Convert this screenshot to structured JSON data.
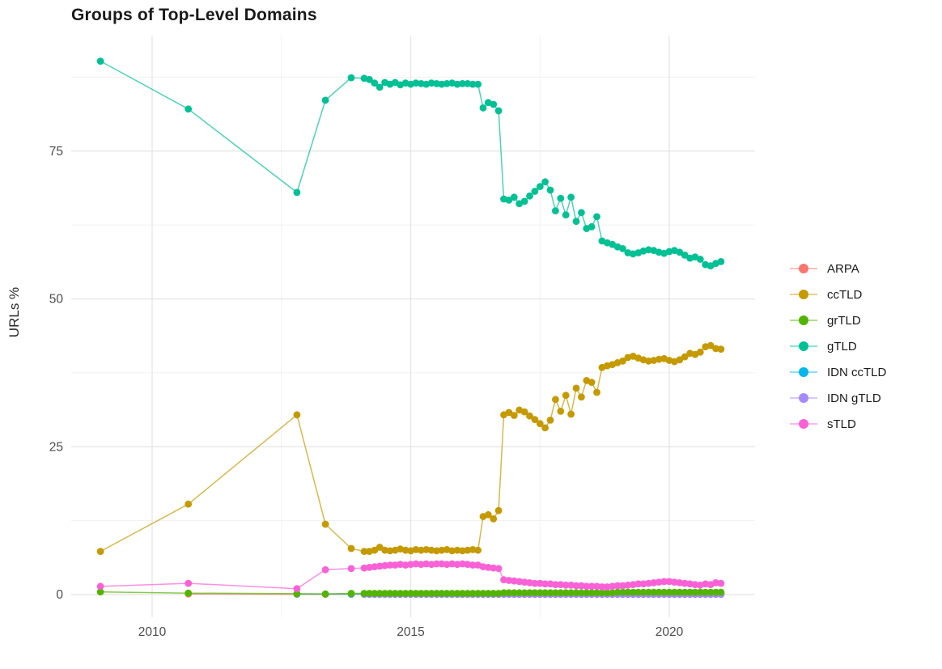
{
  "page": {
    "background": "#ffffff"
  },
  "colors": {
    "grid_major": "#e4e4e4",
    "grid_minor": "#f1f1f1",
    "axis_text": "#4d4d4d",
    "title_text": "#1a1a1a"
  },
  "chart_data": {
    "type": "line",
    "title": "Groups of Top-Level Domains",
    "xlabel": "",
    "ylabel": "URLs %",
    "legend_position": "right",
    "grid": true,
    "xlim": [
      2008.4,
      2021.7
    ],
    "ylim": [
      -3.8,
      94.4
    ],
    "x_ticks": [
      {
        "value": 2010,
        "label": "2010"
      },
      {
        "value": 2015,
        "label": "2015"
      },
      {
        "value": 2020,
        "label": "2020"
      }
    ],
    "x_minor": [
      2012.5,
      2017.5
    ],
    "y_ticks": [
      {
        "value": 0,
        "label": "0"
      },
      {
        "value": 25,
        "label": "25"
      },
      {
        "value": 50,
        "label": "50"
      },
      {
        "value": 75,
        "label": "75"
      }
    ],
    "y_minor": [
      12.5,
      37.5,
      62.5,
      87.5
    ],
    "draw_order": [
      "ARPA",
      "IDN ccTLD",
      "IDN gTLD",
      "ccTLD",
      "gTLD",
      "grTLD",
      "sTLD"
    ],
    "x": [
      2009.0,
      2010.7,
      2012.8,
      2013.35,
      2013.85,
      2014.1,
      2014.2,
      2014.3,
      2014.4,
      2014.5,
      2014.6,
      2014.7,
      2014.8,
      2014.9,
      2015.0,
      2015.1,
      2015.2,
      2015.3,
      2015.4,
      2015.5,
      2015.6,
      2015.7,
      2015.8,
      2015.9,
      2016.0,
      2016.1,
      2016.2,
      2016.3,
      2016.4,
      2016.5,
      2016.6,
      2016.7,
      2016.8,
      2016.9,
      2017.0,
      2017.1,
      2017.2,
      2017.3,
      2017.4,
      2017.5,
      2017.6,
      2017.7,
      2017.8,
      2017.9,
      2018.0,
      2018.1,
      2018.2,
      2018.3,
      2018.4,
      2018.5,
      2018.6,
      2018.7,
      2018.8,
      2018.9,
      2019.0,
      2019.1,
      2019.2,
      2019.3,
      2019.4,
      2019.5,
      2019.6,
      2019.7,
      2019.8,
      2019.9,
      2020.0,
      2020.1,
      2020.2,
      2020.3,
      2020.4,
      2020.5,
      2020.6,
      2020.7,
      2020.8,
      2020.9,
      2021.0
    ],
    "series": [
      {
        "name": "ARPA",
        "color": "#F8766D",
        "values": [
          null,
          0.1,
          0.05,
          0.05,
          0.05,
          0.05,
          0.05,
          0.05,
          0.05,
          0.05,
          0.05,
          0.05,
          0.05,
          0.05,
          0.05,
          0.05,
          0.05,
          0.05,
          0.05,
          0.05,
          0.05,
          0.05,
          0.05,
          0.05,
          0.05,
          0.05,
          0.05,
          0.05,
          0.05,
          0.05,
          0.05,
          0.05,
          0.05,
          0.05,
          0.05,
          0.05,
          0.05,
          0.05,
          0.05,
          0.05,
          0.05,
          0.05,
          0.05,
          0.05,
          0.05,
          0.05,
          0.05,
          0.05,
          0.05,
          0.05,
          0.05,
          0.05,
          0.05,
          0.05,
          0.05,
          0.05,
          0.05,
          0.05,
          0.05,
          0.05,
          0.05,
          0.05,
          0.05,
          0.05,
          0.05,
          0.05,
          0.05,
          0.05,
          0.05,
          0.05,
          0.05,
          0.05,
          0.05,
          0.05,
          0.05
        ]
      },
      {
        "name": "ccTLD",
        "color": "#C49A00",
        "values": [
          7.3,
          15.3,
          30.4,
          11.9,
          7.8,
          7.3,
          7.3,
          7.5,
          8.0,
          7.5,
          7.4,
          7.5,
          7.7,
          7.5,
          7.4,
          7.6,
          7.5,
          7.6,
          7.5,
          7.4,
          7.5,
          7.6,
          7.4,
          7.5,
          7.4,
          7.5,
          7.6,
          7.5,
          13.2,
          13.5,
          12.8,
          14.2,
          30.4,
          30.8,
          30.3,
          31.2,
          30.9,
          30.2,
          29.6,
          28.9,
          28.2,
          29.5,
          33.0,
          31.0,
          33.7,
          30.5,
          34.9,
          33.4,
          36.2,
          35.9,
          34.2,
          38.4,
          38.7,
          38.9,
          39.2,
          39.5,
          40.1,
          40.3,
          40.0,
          39.7,
          39.5,
          39.6,
          39.8,
          39.9,
          39.6,
          39.4,
          39.7,
          40.2,
          40.8,
          40.6,
          41.0,
          41.9,
          42.1,
          41.6,
          41.5
        ]
      },
      {
        "name": "grTLD",
        "color": "#53B400",
        "values": [
          0.45,
          0.25,
          0.15,
          0.1,
          0.2,
          0.2,
          0.2,
          0.2,
          0.2,
          0.2,
          0.2,
          0.2,
          0.2,
          0.2,
          0.2,
          0.2,
          0.2,
          0.2,
          0.2,
          0.2,
          0.2,
          0.2,
          0.2,
          0.2,
          0.2,
          0.2,
          0.2,
          0.2,
          0.2,
          0.2,
          0.2,
          0.2,
          0.3,
          0.3,
          0.3,
          0.3,
          0.3,
          0.3,
          0.3,
          0.3,
          0.3,
          0.3,
          0.3,
          0.3,
          0.3,
          0.3,
          0.3,
          0.3,
          0.3,
          0.3,
          0.3,
          0.3,
          0.3,
          0.3,
          0.4,
          0.4,
          0.4,
          0.4,
          0.4,
          0.4,
          0.4,
          0.4,
          0.4,
          0.4,
          0.4,
          0.4,
          0.4,
          0.4,
          0.4,
          0.4,
          0.4,
          0.4,
          0.4,
          0.4,
          0.4
        ]
      },
      {
        "name": "gTLD",
        "color": "#00C094",
        "values": [
          90.2,
          82.1,
          68.0,
          83.6,
          87.4,
          87.3,
          87.1,
          86.5,
          85.8,
          86.6,
          86.3,
          86.6,
          86.2,
          86.5,
          86.3,
          86.5,
          86.4,
          86.3,
          86.5,
          86.4,
          86.3,
          86.4,
          86.5,
          86.3,
          86.4,
          86.4,
          86.3,
          86.3,
          82.3,
          83.2,
          82.9,
          81.8,
          66.9,
          66.7,
          67.2,
          66.1,
          66.5,
          67.4,
          68.2,
          69.0,
          69.8,
          68.4,
          64.9,
          67.0,
          64.2,
          67.2,
          63.1,
          64.6,
          61.9,
          62.2,
          63.9,
          59.8,
          59.5,
          59.2,
          58.8,
          58.5,
          57.8,
          57.6,
          57.8,
          58.1,
          58.3,
          58.2,
          57.9,
          57.7,
          58.0,
          58.2,
          57.9,
          57.4,
          56.9,
          57.1,
          56.7,
          55.8,
          55.6,
          56.0,
          56.3
        ]
      },
      {
        "name": "IDN ccTLD",
        "color": "#00B6EB",
        "values": [
          null,
          null,
          0.1,
          0.1,
          0.1,
          0.1,
          0.1,
          0.1,
          0.1,
          0.1,
          0.1,
          0.1,
          0.1,
          0.1,
          0.1,
          0.1,
          0.1,
          0.1,
          0.1,
          0.1,
          0.1,
          0.1,
          0.1,
          0.1,
          0.1,
          0.1,
          0.1,
          0.1,
          0.1,
          0.1,
          0.1,
          0.1,
          0.1,
          0.1,
          0.1,
          0.1,
          0.1,
          0.1,
          0.1,
          0.1,
          0.1,
          0.1,
          0.1,
          0.1,
          0.1,
          0.1,
          0.1,
          0.1,
          0.1,
          0.1,
          0.1,
          0.1,
          0.1,
          0.1,
          0.1,
          0.1,
          0.1,
          0.1,
          0.1,
          0.1,
          0.1,
          0.1,
          0.1,
          0.1,
          0.1,
          0.1,
          0.1,
          0.1,
          0.1,
          0.1,
          0.1,
          0.1,
          0.1,
          0.1,
          0.1
        ]
      },
      {
        "name": "IDN gTLD",
        "color": "#A58AFF",
        "values": [
          null,
          null,
          null,
          null,
          null,
          0.03,
          0.03,
          0.03,
          0.03,
          0.03,
          0.03,
          0.03,
          0.03,
          0.03,
          0.03,
          0.03,
          0.03,
          0.03,
          0.03,
          0.03,
          0.03,
          0.03,
          0.03,
          0.03,
          0.03,
          0.03,
          0.03,
          0.03,
          0.03,
          0.03,
          0.03,
          0.03,
          0.03,
          0.03,
          0.03,
          0.03,
          0.03,
          0.03,
          0.03,
          0.03,
          0.03,
          0.03,
          0.03,
          0.03,
          0.03,
          0.03,
          0.03,
          0.03,
          0.03,
          0.03,
          0.03,
          0.03,
          0.03,
          0.03,
          0.03,
          0.03,
          0.03,
          0.03,
          0.03,
          0.03,
          0.03,
          0.03,
          0.03,
          0.03,
          0.03,
          0.03,
          0.03,
          0.03,
          0.03,
          0.03,
          0.03,
          0.03,
          0.03,
          0.03,
          0.03
        ]
      },
      {
        "name": "sTLD",
        "color": "#FB61D7",
        "values": [
          1.4,
          1.9,
          1.0,
          4.2,
          4.4,
          4.5,
          4.6,
          4.7,
          4.8,
          4.9,
          5.0,
          5.0,
          5.1,
          5.0,
          5.1,
          5.2,
          5.1,
          5.2,
          5.1,
          5.2,
          5.2,
          5.1,
          5.2,
          5.1,
          5.2,
          5.1,
          5.0,
          5.0,
          4.7,
          4.6,
          4.5,
          4.4,
          2.5,
          2.4,
          2.3,
          2.2,
          2.1,
          2.0,
          1.9,
          1.9,
          1.8,
          1.8,
          1.7,
          1.7,
          1.6,
          1.6,
          1.5,
          1.5,
          1.4,
          1.4,
          1.4,
          1.3,
          1.3,
          1.4,
          1.5,
          1.5,
          1.6,
          1.7,
          1.8,
          1.8,
          1.9,
          2.0,
          2.1,
          2.2,
          2.2,
          2.1,
          2.0,
          1.9,
          1.8,
          1.7,
          1.6,
          1.8,
          1.7,
          2.0,
          1.9
        ]
      }
    ]
  }
}
